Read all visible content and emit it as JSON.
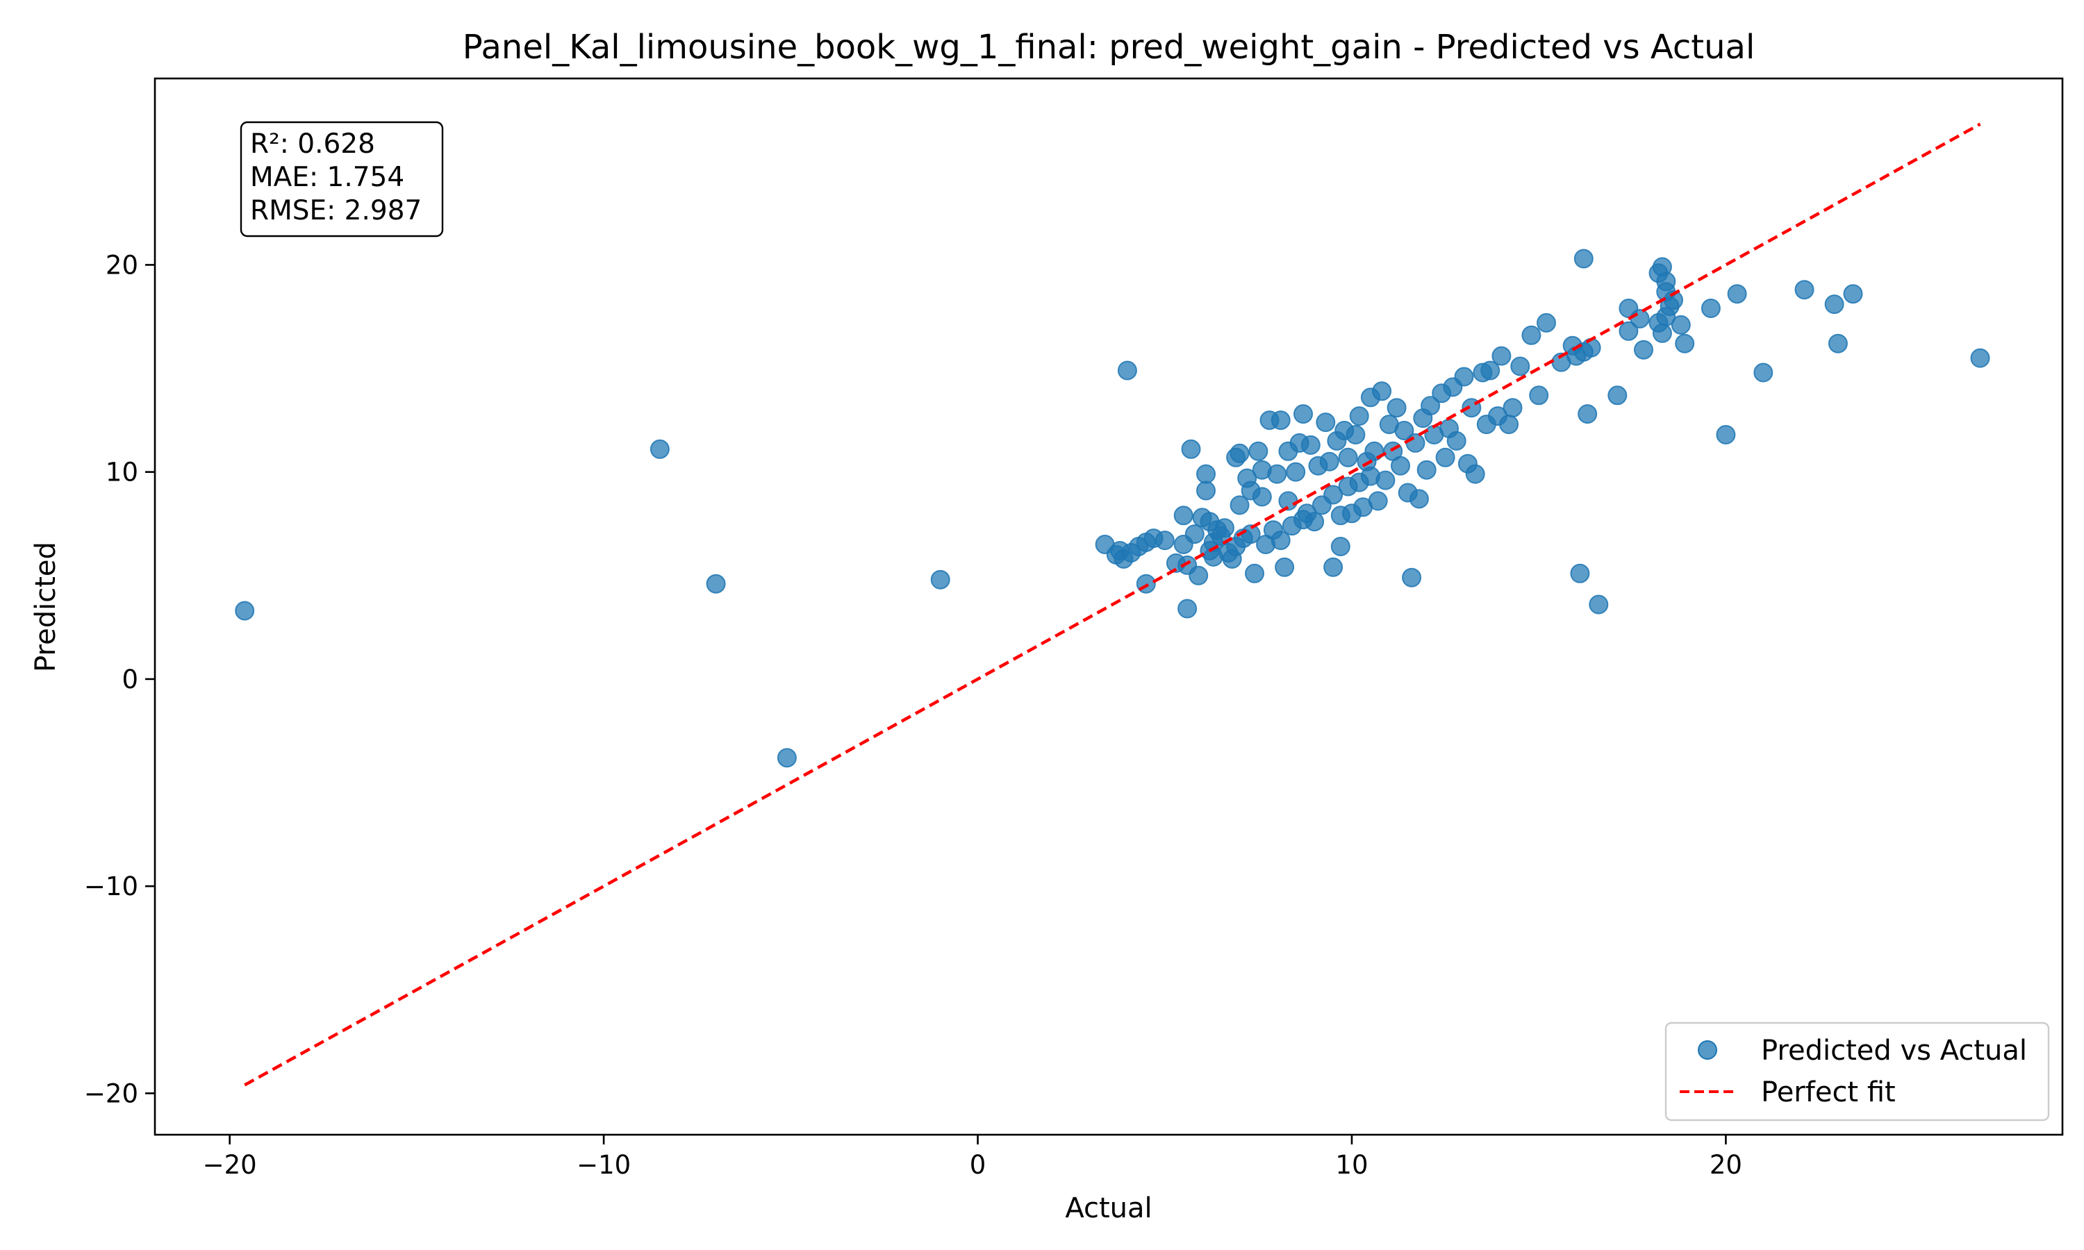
{
  "chart_data": {
    "type": "scatter",
    "title": "Panel_Kal_limousine_book_wg_1_final: pred_weight_gain - Predicted vs Actual",
    "xlabel": "Actual",
    "ylabel": "Predicted",
    "xlim": [
      -22,
      29
    ],
    "ylim": [
      -22,
      29
    ],
    "xticks": [
      -20,
      -10,
      0,
      10,
      20
    ],
    "yticks": [
      -20,
      -10,
      0,
      10,
      20
    ],
    "tick_labels": {
      "x": [
        "−20",
        "−10",
        "0",
        "10",
        "20"
      ],
      "y": [
        "−20",
        "−10",
        "0",
        "10",
        "20"
      ]
    },
    "grid": false,
    "legend_position": "lower-right",
    "stats": {
      "r2": "R²: 0.628",
      "mae": "MAE: 1.754",
      "rmse": "RMSE: 2.987"
    },
    "series": [
      {
        "name": "Predicted vs Actual",
        "type": "scatter",
        "color": "#1f77b4",
        "points": [
          [
            -19.6,
            3.3
          ],
          [
            -8.5,
            11.1
          ],
          [
            -7.0,
            4.6
          ],
          [
            -5.1,
            -3.8
          ],
          [
            -1.0,
            4.8
          ],
          [
            3.4,
            6.5
          ],
          [
            3.7,
            6.0
          ],
          [
            3.8,
            6.2
          ],
          [
            3.9,
            5.8
          ],
          [
            4.0,
            14.9
          ],
          [
            4.1,
            6.1
          ],
          [
            4.3,
            6.4
          ],
          [
            4.5,
            6.6
          ],
          [
            4.7,
            6.8
          ],
          [
            4.5,
            4.6
          ],
          [
            5.0,
            6.7
          ],
          [
            5.3,
            5.6
          ],
          [
            5.5,
            7.9
          ],
          [
            5.5,
            6.5
          ],
          [
            5.6,
            3.4
          ],
          [
            5.6,
            5.5
          ],
          [
            5.7,
            11.1
          ],
          [
            5.8,
            7.0
          ],
          [
            5.9,
            5.0
          ],
          [
            6.0,
            7.8
          ],
          [
            6.1,
            9.9
          ],
          [
            6.1,
            9.1
          ],
          [
            6.2,
            7.6
          ],
          [
            6.2,
            6.2
          ],
          [
            6.3,
            6.6
          ],
          [
            6.3,
            5.9
          ],
          [
            6.4,
            7.2
          ],
          [
            6.5,
            6.9
          ],
          [
            6.6,
            7.3
          ],
          [
            6.7,
            6.1
          ],
          [
            6.8,
            5.8
          ],
          [
            6.9,
            10.7
          ],
          [
            6.9,
            6.4
          ],
          [
            7.0,
            8.4
          ],
          [
            7.0,
            10.9
          ],
          [
            7.1,
            6.8
          ],
          [
            7.2,
            9.7
          ],
          [
            7.3,
            7.0
          ],
          [
            7.3,
            9.1
          ],
          [
            7.4,
            5.1
          ],
          [
            7.5,
            11.0
          ],
          [
            7.6,
            10.1
          ],
          [
            7.6,
            8.8
          ],
          [
            7.7,
            6.5
          ],
          [
            7.8,
            12.5
          ],
          [
            7.9,
            7.2
          ],
          [
            8.0,
            9.9
          ],
          [
            8.1,
            6.7
          ],
          [
            8.1,
            12.5
          ],
          [
            8.2,
            5.4
          ],
          [
            8.3,
            8.6
          ],
          [
            8.3,
            11.0
          ],
          [
            8.4,
            7.4
          ],
          [
            8.5,
            10.0
          ],
          [
            8.6,
            11.4
          ],
          [
            8.7,
            7.7
          ],
          [
            8.7,
            12.8
          ],
          [
            8.8,
            8.0
          ],
          [
            8.9,
            11.3
          ],
          [
            9.0,
            7.6
          ],
          [
            9.1,
            10.3
          ],
          [
            9.2,
            8.4
          ],
          [
            9.3,
            12.4
          ],
          [
            9.4,
            10.5
          ],
          [
            9.5,
            8.9
          ],
          [
            9.5,
            5.4
          ],
          [
            9.6,
            11.5
          ],
          [
            9.7,
            6.4
          ],
          [
            9.7,
            7.9
          ],
          [
            9.8,
            12.0
          ],
          [
            9.9,
            10.7
          ],
          [
            9.9,
            9.3
          ],
          [
            10.0,
            8.0
          ],
          [
            10.1,
            11.8
          ],
          [
            10.2,
            9.5
          ],
          [
            10.2,
            12.7
          ],
          [
            10.3,
            8.3
          ],
          [
            10.4,
            10.5
          ],
          [
            10.5,
            9.8
          ],
          [
            10.5,
            13.6
          ],
          [
            10.6,
            11.0
          ],
          [
            10.7,
            8.6
          ],
          [
            10.8,
            13.9
          ],
          [
            10.9,
            9.6
          ],
          [
            11.0,
            12.3
          ],
          [
            11.1,
            11.0
          ],
          [
            11.2,
            13.1
          ],
          [
            11.3,
            10.3
          ],
          [
            11.4,
            12.0
          ],
          [
            11.5,
            9.0
          ],
          [
            11.6,
            4.9
          ],
          [
            11.7,
            11.4
          ],
          [
            11.8,
            8.7
          ],
          [
            11.9,
            12.6
          ],
          [
            12.0,
            10.1
          ],
          [
            12.1,
            13.2
          ],
          [
            12.2,
            11.8
          ],
          [
            12.4,
            13.8
          ],
          [
            12.5,
            10.7
          ],
          [
            12.6,
            12.1
          ],
          [
            12.7,
            14.1
          ],
          [
            12.8,
            11.5
          ],
          [
            13.0,
            14.6
          ],
          [
            13.1,
            10.4
          ],
          [
            13.2,
            13.1
          ],
          [
            13.3,
            9.9
          ],
          [
            13.5,
            14.8
          ],
          [
            13.6,
            12.3
          ],
          [
            13.7,
            14.9
          ],
          [
            13.9,
            12.7
          ],
          [
            14.0,
            15.6
          ],
          [
            14.2,
            12.3
          ],
          [
            14.3,
            13.1
          ],
          [
            14.5,
            15.1
          ],
          [
            14.8,
            16.6
          ],
          [
            15.0,
            13.7
          ],
          [
            15.2,
            17.2
          ],
          [
            15.6,
            15.3
          ],
          [
            15.9,
            16.1
          ],
          [
            16.0,
            15.6
          ],
          [
            16.1,
            5.1
          ],
          [
            16.2,
            20.3
          ],
          [
            16.2,
            15.8
          ],
          [
            16.3,
            12.8
          ],
          [
            16.4,
            16.0
          ],
          [
            16.6,
            3.6
          ],
          [
            17.1,
            13.7
          ],
          [
            17.4,
            17.9
          ],
          [
            17.4,
            16.8
          ],
          [
            17.7,
            17.4
          ],
          [
            17.8,
            15.9
          ],
          [
            18.2,
            17.2
          ],
          [
            18.2,
            19.6
          ],
          [
            18.3,
            16.7
          ],
          [
            18.3,
            19.9
          ],
          [
            18.4,
            18.7
          ],
          [
            18.4,
            17.5
          ],
          [
            18.4,
            19.2
          ],
          [
            18.5,
            18.0
          ],
          [
            18.6,
            18.3
          ],
          [
            18.8,
            17.1
          ],
          [
            18.9,
            16.2
          ],
          [
            19.6,
            17.9
          ],
          [
            20.0,
            11.8
          ],
          [
            20.3,
            18.6
          ],
          [
            21.0,
            14.8
          ],
          [
            22.1,
            18.8
          ],
          [
            22.9,
            18.1
          ],
          [
            23.0,
            16.2
          ],
          [
            23.4,
            18.6
          ],
          [
            26.8,
            15.5
          ]
        ]
      },
      {
        "name": "Perfect fit",
        "type": "line",
        "style": "dashed",
        "color": "#ff0000",
        "points": [
          [
            -19.6,
            -19.6
          ],
          [
            26.8,
            26.8
          ]
        ]
      }
    ]
  }
}
